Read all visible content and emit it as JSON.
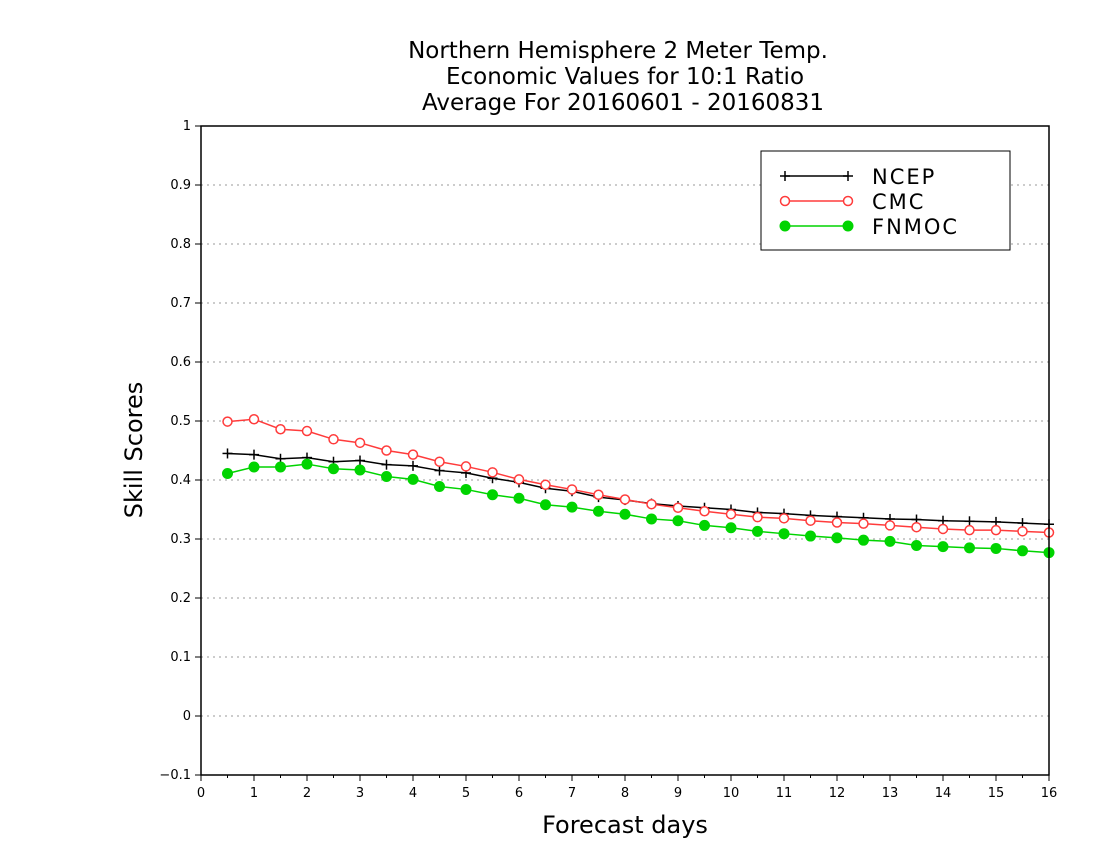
{
  "chart_data": {
    "type": "line",
    "title_lines": [
      "Northern Hemisphere 2 Meter Temp.",
      "Economic Values for 10:1 Ratio",
      "Average For 20160601 - 20160831"
    ],
    "xlabel": "Forecast days",
    "ylabel": "Skill Scores",
    "xlim": [
      0,
      16
    ],
    "ylim": [
      -0.1,
      1
    ],
    "x_ticks": [
      0,
      1,
      2,
      3,
      4,
      5,
      6,
      7,
      8,
      9,
      10,
      11,
      12,
      13,
      14,
      15,
      16
    ],
    "y_ticks": [
      -0.1,
      0,
      0.1,
      0.2,
      0.3,
      0.4,
      0.5,
      0.6,
      0.7,
      0.8,
      0.9,
      1
    ],
    "y_tick_labels": [
      "−0.1",
      "0",
      "0.1",
      "0.2",
      "0.3",
      "0.4",
      "0.5",
      "0.6",
      "0.7",
      "0.8",
      "0.9",
      "1"
    ],
    "grid": "horizontal dotted",
    "legend_position": "top-right",
    "x": [
      0.5,
      1,
      1.5,
      2,
      2.5,
      3,
      3.5,
      4,
      4.5,
      5,
      5.5,
      6,
      6.5,
      7,
      7.5,
      8,
      8.5,
      9,
      9.5,
      10,
      10.5,
      11,
      11.5,
      12,
      12.5,
      13,
      13.5,
      14,
      14.5,
      15,
      15.5,
      16
    ],
    "series": [
      {
        "name": "NCEP",
        "color": "#000000",
        "marker": "plus",
        "values": [
          0.445,
          0.443,
          0.436,
          0.438,
          0.431,
          0.433,
          0.426,
          0.424,
          0.416,
          0.412,
          0.403,
          0.396,
          0.386,
          0.381,
          0.371,
          0.366,
          0.36,
          0.356,
          0.353,
          0.35,
          0.345,
          0.343,
          0.34,
          0.338,
          0.336,
          0.334,
          0.333,
          0.331,
          0.33,
          0.329,
          0.327,
          0.325
        ]
      },
      {
        "name": "CMC",
        "color": "#ff3b3b",
        "marker": "open-circle",
        "values": [
          0.499,
          0.503,
          0.486,
          0.483,
          0.469,
          0.463,
          0.45,
          0.443,
          0.431,
          0.423,
          0.413,
          0.401,
          0.392,
          0.384,
          0.375,
          0.367,
          0.359,
          0.353,
          0.347,
          0.342,
          0.337,
          0.335,
          0.331,
          0.328,
          0.326,
          0.323,
          0.32,
          0.317,
          0.315,
          0.315,
          0.313,
          0.311
        ]
      },
      {
        "name": "FNMOC",
        "color": "#00d400",
        "marker": "filled-circle",
        "values": [
          0.411,
          0.422,
          0.422,
          0.427,
          0.419,
          0.417,
          0.406,
          0.401,
          0.389,
          0.384,
          0.375,
          0.369,
          0.358,
          0.354,
          0.347,
          0.342,
          0.334,
          0.331,
          0.323,
          0.319,
          0.313,
          0.309,
          0.305,
          0.302,
          0.298,
          0.296,
          0.289,
          0.287,
          0.285,
          0.284,
          0.28,
          0.277
        ]
      }
    ]
  }
}
